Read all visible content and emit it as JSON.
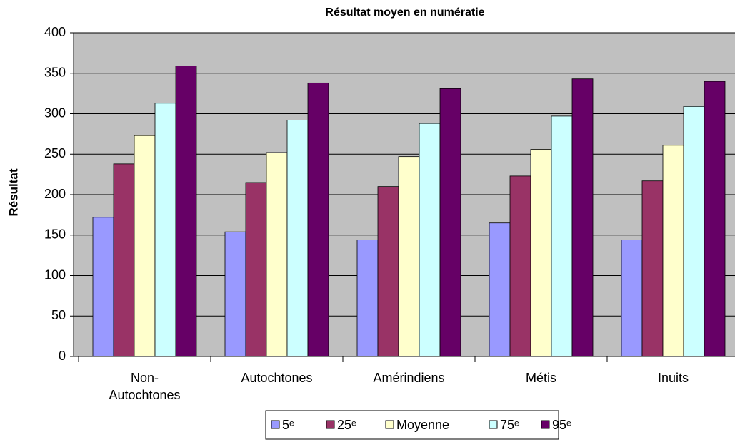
{
  "chart_data": {
    "type": "bar",
    "title": "Résultat moyen en numératie",
    "ylabel": "Résultat",
    "categories": [
      "Non-Autochtones",
      "Autochtones",
      "Amérindiens",
      "Métis",
      "Inuits"
    ],
    "series": [
      {
        "name": "5ᵉ",
        "color": "#9999ff",
        "values": [
          172,
          154,
          144,
          165,
          144
        ]
      },
      {
        "name": "25ᵉ",
        "color": "#993366",
        "values": [
          238,
          215,
          210,
          223,
          217
        ]
      },
      {
        "name": "Moyenne",
        "color": "#ffffcc",
        "values": [
          273,
          252,
          247,
          256,
          261
        ]
      },
      {
        "name": "75ᵉ",
        "color": "#ccffff",
        "values": [
          313,
          292,
          288,
          297,
          309
        ]
      },
      {
        "name": "95ᵉ",
        "color": "#660066",
        "values": [
          359,
          338,
          331,
          343,
          340
        ]
      }
    ],
    "ylim": [
      0,
      400
    ],
    "yticks": [
      0,
      50,
      100,
      150,
      200,
      250,
      300,
      350,
      400
    ],
    "grid": true,
    "legend": "bottom"
  }
}
